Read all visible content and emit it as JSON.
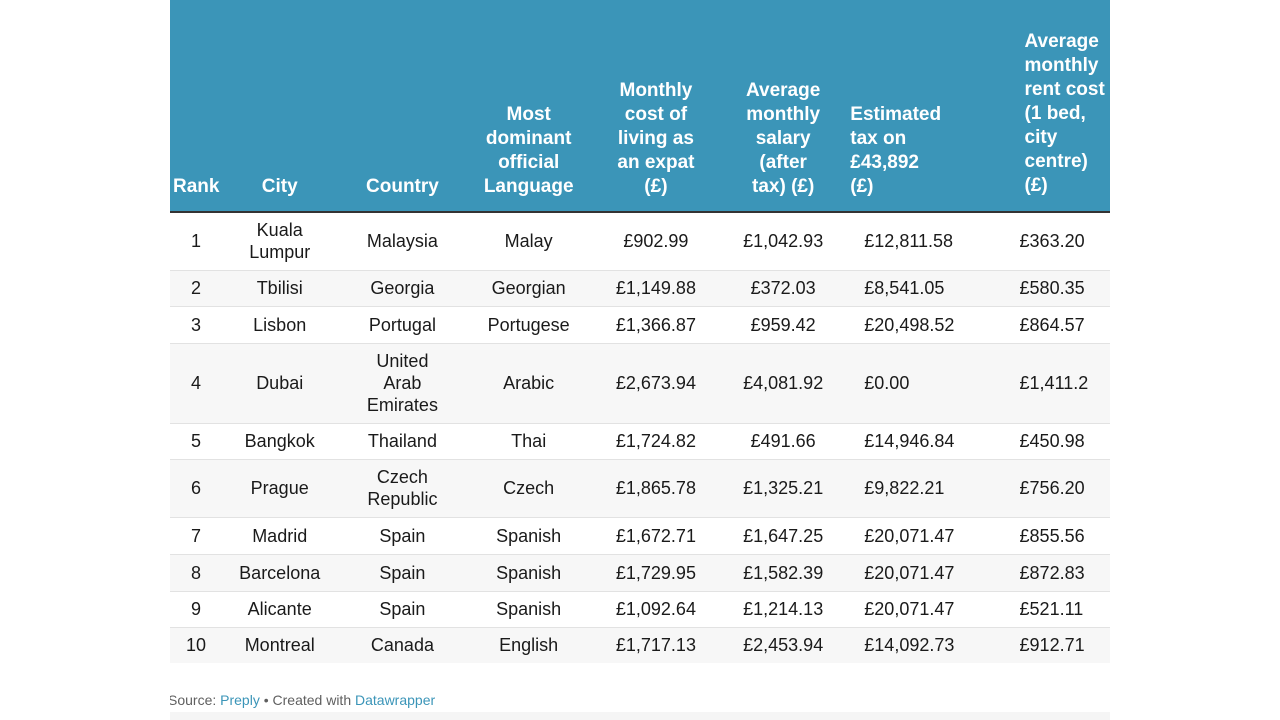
{
  "table": {
    "headers": {
      "rank": "Rank",
      "city": "City",
      "country": "Country",
      "language": "Most\ndominant\nofficial\nLanguage",
      "cost": "Monthly\ncost of\nliving as\nan expat\n(£)",
      "salary": "Average\nmonthly\nsalary\n(after\ntax) (£)",
      "tax": "Estimated\ntax on\n£43,892\n(£)",
      "rent": "Average\nmonthly\nrent cost\n(1 bed,\ncity\ncentre)\n(£)"
    },
    "rows": [
      {
        "rank": "1",
        "city": "Kuala\nLumpur",
        "country": "Malaysia",
        "language": "Malay",
        "cost": "£902.99",
        "salary": "£1,042.93",
        "tax": "£12,811.58",
        "rent": "£363.20"
      },
      {
        "rank": "2",
        "city": "Tbilisi",
        "country": "Georgia",
        "language": "Georgian",
        "cost": "£1,149.88",
        "salary": "£372.03",
        "tax": "£8,541.05",
        "rent": "£580.35"
      },
      {
        "rank": "3",
        "city": "Lisbon",
        "country": "Portugal",
        "language": "Portugese",
        "cost": "£1,366.87",
        "salary": "£959.42",
        "tax": "£20,498.52",
        "rent": "£864.57"
      },
      {
        "rank": "4",
        "city": "Dubai",
        "country": "United\nArab\nEmirates",
        "language": "Arabic",
        "cost": "£2,673.94",
        "salary": "£4,081.92",
        "tax": "£0.00",
        "rent": "£1,411.2"
      },
      {
        "rank": "5",
        "city": "Bangkok",
        "country": "Thailand",
        "language": "Thai",
        "cost": "£1,724.82",
        "salary": "£491.66",
        "tax": "£14,946.84",
        "rent": "£450.98"
      },
      {
        "rank": "6",
        "city": "Prague",
        "country": "Czech\nRepublic",
        "language": "Czech",
        "cost": "£1,865.78",
        "salary": "£1,325.21",
        "tax": "£9,822.21",
        "rent": "£756.20"
      },
      {
        "rank": "7",
        "city": "Madrid",
        "country": "Spain",
        "language": "Spanish",
        "cost": "£1,672.71",
        "salary": "£1,647.25",
        "tax": "£20,071.47",
        "rent": "£855.56"
      },
      {
        "rank": "8",
        "city": "Barcelona",
        "country": "Spain",
        "language": "Spanish",
        "cost": "£1,729.95",
        "salary": "£1,582.39",
        "tax": "£20,071.47",
        "rent": "£872.83"
      },
      {
        "rank": "9",
        "city": "Alicante",
        "country": "Spain",
        "language": "Spanish",
        "cost": "£1,092.64",
        "salary": "£1,214.13",
        "tax": "£20,071.47",
        "rent": "£521.11"
      },
      {
        "rank": "10",
        "city": "Montreal",
        "country": "Canada",
        "language": "English",
        "cost": "£1,717.13",
        "salary": "£2,453.94",
        "tax": "£14,092.73",
        "rent": "£912.71"
      }
    ]
  },
  "footer": {
    "source_label": "Source: ",
    "source_link": "Preply",
    "separator": " • Created with ",
    "created_link": "Datawrapper"
  },
  "colors": {
    "header_bg": "#3b95b8",
    "link": "#3b95b8"
  }
}
